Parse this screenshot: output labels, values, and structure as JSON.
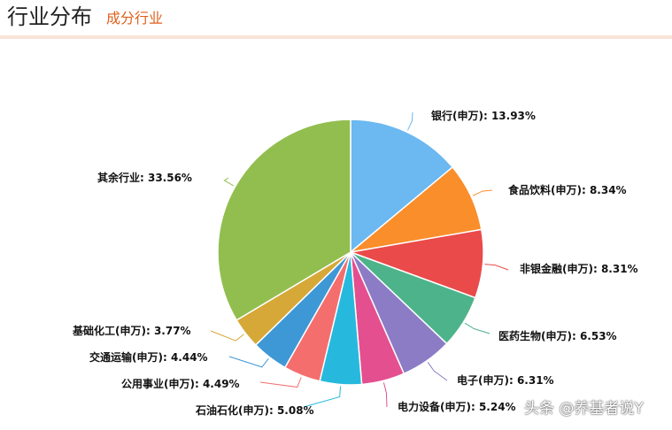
{
  "header": {
    "title": "行业分布",
    "subtitle": "成分行业"
  },
  "watermark": "头条 @养基者说Y",
  "chart_data": {
    "type": "pie",
    "categories": [
      "银行(申万)",
      "食品饮料(申万)",
      "非银金融(申万)",
      "医药生物(申万)",
      "电子(申万)",
      "电力设备(申万)",
      "石油石化(申万)",
      "公用事业(申万)",
      "交通运输(申万)",
      "基础化工(申万)",
      "其余行业"
    ],
    "values": [
      13.93,
      8.34,
      8.31,
      6.53,
      6.31,
      5.24,
      5.08,
      4.49,
      4.44,
      3.77,
      33.56
    ],
    "labels": [
      "银行(申万): 13.93%",
      "食品饮料(申万): 8.34%",
      "非银金融(申万): 8.31%",
      "医药生物(申万): 6.53%",
      "电子(申万): 6.31%",
      "电力设备(申万): 5.24%",
      "石油石化(申万): 5.08%",
      "公用事业(申万): 4.49%",
      "交通运输(申万): 4.44%",
      "基础化工(申万): 3.77%",
      "其余行业: 33.56%"
    ],
    "colors": [
      "#6cb8f0",
      "#f98e2b",
      "#ea4a4a",
      "#4db38a",
      "#8c7cc6",
      "#e44f8f",
      "#27b9dd",
      "#f46e6e",
      "#3e98d6",
      "#d6a838",
      "#92be4f"
    ],
    "unit": "%",
    "legend": "none"
  }
}
